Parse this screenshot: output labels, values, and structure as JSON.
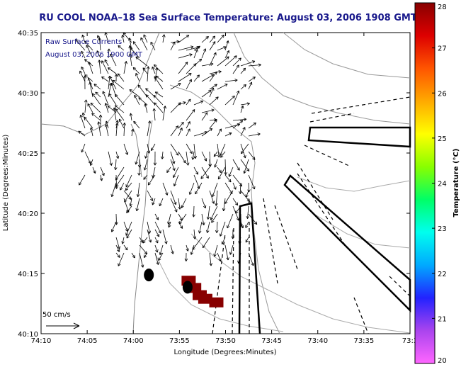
{
  "title": "RU COOL  NOAA–18  Sea Surface Temperature:  August 03, 2006 1908 GMT",
  "overlay": {
    "line1": "Raw Surface Currents",
    "line2": "August 03, 2006 1900 GMT"
  },
  "scale_label": "50 cm/s",
  "colorbar": {
    "title": "Temperature (°C)",
    "ticks": [
      "20",
      "21",
      "22",
      "23",
      "24",
      "25",
      "26",
      "27",
      "28"
    ],
    "range": [
      20,
      28
    ],
    "colors": [
      "#ff66ff",
      "#aa44ee",
      "#2222ff",
      "#00aaff",
      "#00ffee",
      "#00ff66",
      "#88ff00",
      "#ffff00",
      "#ffaa00",
      "#ff5500",
      "#dd0000",
      "#880000"
    ]
  },
  "chart_data": {
    "type": "scatter",
    "title": "RU COOL  NOAA–18  Sea Surface Temperature:  August 03, 2006 1908 GMT",
    "xlabel": "Longitude (Degrees:Minutes)",
    "ylabel": "Latitude (Degrees:Minutes)",
    "x_ticks": [
      "74:10",
      "74:05",
      "74:00",
      "73:55",
      "73:50",
      "73:45",
      "73:40",
      "73:35",
      "73:3"
    ],
    "y_ticks": [
      "40:10",
      "40:15",
      "40:20",
      "40:25",
      "40:30",
      "40:35"
    ],
    "xlim": [
      -74.1667,
      -73.5
    ],
    "ylim": [
      40.1667,
      40.5833
    ],
    "grid": false,
    "sst_pixels": [
      {
        "lon": -73.9,
        "lat": 40.24,
        "temp_c": 28
      },
      {
        "lon": -73.89,
        "lat": 40.23,
        "temp_c": 28
      },
      {
        "lon": -73.88,
        "lat": 40.22,
        "temp_c": 28
      },
      {
        "lon": -73.87,
        "lat": 40.215,
        "temp_c": 28
      },
      {
        "lon": -73.85,
        "lat": 40.21,
        "temp_c": 28
      }
    ],
    "markers": [
      {
        "label": "",
        "lon": -73.972,
        "lat": 40.248
      },
      {
        "label": "",
        "lon": -73.902,
        "lat": 40.231
      }
    ]
  }
}
